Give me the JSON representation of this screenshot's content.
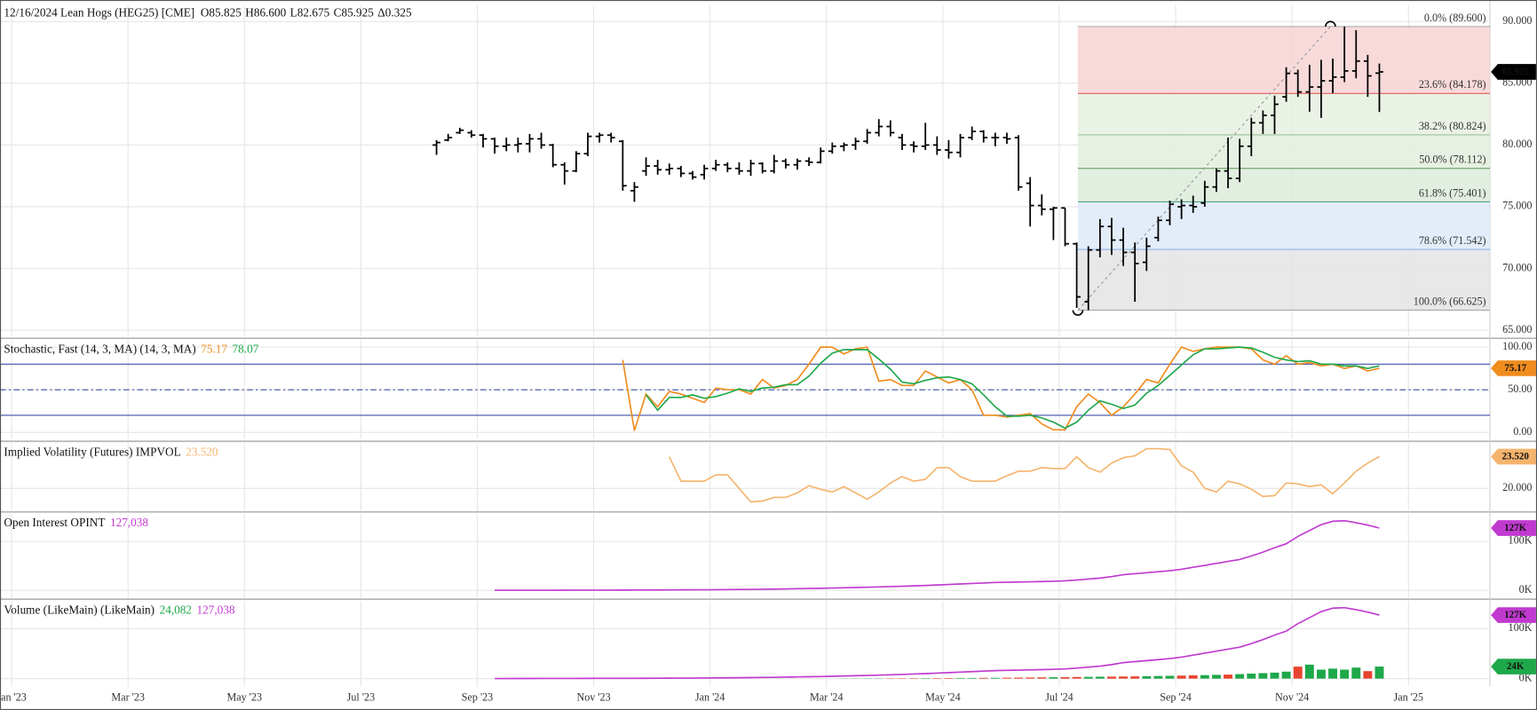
{
  "header": {
    "title": "12/16/2024 Lean Hogs (HEG25) [CME]",
    "quote": [
      "O85.825",
      "H86.600",
      "L82.675",
      "C85.925",
      "Δ0.325"
    ]
  },
  "chart_data": [
    {
      "type": "ohlc",
      "color": "#000000",
      "grid": true,
      "last_label": "85.925",
      "x": [
        7.3,
        7.5,
        7.7,
        7.9,
        8.1,
        8.3,
        8.5,
        8.7,
        8.9,
        9.1,
        9.3,
        9.5,
        9.7,
        9.9,
        10.1,
        10.3,
        10.5,
        10.7,
        10.9,
        11.1,
        11.3,
        11.5,
        11.7,
        11.9,
        12.1,
        12.3,
        12.5,
        12.7,
        12.9,
        13.1,
        13.3,
        13.5,
        13.7,
        13.9,
        14.1,
        14.3,
        14.5,
        14.7,
        14.9,
        15.1,
        15.3,
        15.5,
        15.7,
        15.9,
        16.1,
        16.3,
        16.5,
        16.7,
        16.9,
        17.1,
        17.3,
        17.5,
        17.7,
        17.9,
        18.1,
        18.3,
        18.5,
        18.7,
        18.9,
        19.1,
        19.3,
        19.5,
        19.7,
        19.9,
        20.1,
        20.3,
        20.5,
        20.7,
        20.9,
        21.1,
        21.3,
        21.5,
        21.7,
        21.9,
        22.1,
        22.3,
        22.5,
        22.7,
        22.9,
        23.1,
        23.3,
        23.5
      ],
      "open": [
        80.0,
        80.4,
        81.0,
        81.0,
        80.8,
        80.5,
        79.9,
        80.0,
        80.1,
        80.5,
        80.0,
        78.4,
        77.9,
        79.3,
        80.7,
        80.8,
        80.3,
        76.3,
        77.9,
        78.3,
        78.0,
        78.1,
        77.7,
        77.6,
        78.1,
        78.4,
        78.1,
        77.9,
        78.5,
        77.9,
        78.7,
        78.4,
        78.7,
        78.6,
        79.5,
        79.9,
        80.0,
        80.3,
        81.0,
        81.5,
        80.6,
        80.0,
        79.9,
        80.0,
        79.6,
        79.4,
        80.6,
        81.1,
        80.6,
        80.6,
        80.6,
        76.9,
        75.1,
        74.8,
        74.9,
        72.0,
        67.3,
        71.5,
        73.4,
        72.3,
        71.3,
        70.5,
        72.5,
        73.9,
        75.0,
        75.1,
        75.3,
        76.6,
        77.9,
        77.3,
        79.9,
        81.8,
        82.4,
        83.9,
        85.8,
        84.3,
        84.7,
        85.2,
        85.5,
        86.0,
        86.8,
        85.825
      ],
      "high": [
        80.4,
        80.9,
        81.4,
        81.2,
        80.9,
        80.6,
        80.6,
        80.6,
        80.9,
        81.0,
        80.1,
        78.6,
        79.5,
        81.0,
        81.0,
        81.0,
        80.4,
        77.0,
        79.0,
        78.8,
        78.5,
        78.3,
        77.9,
        78.4,
        78.8,
        78.6,
        78.6,
        78.8,
        78.6,
        79.2,
        78.9,
        78.9,
        79.0,
        79.8,
        80.2,
        80.2,
        80.6,
        81.3,
        82.1,
        82.0,
        80.9,
        80.3,
        81.8,
        80.7,
        80.4,
        80.9,
        81.5,
        81.2,
        81.0,
        81.0,
        80.8,
        77.4,
        76.0,
        75.0,
        74.9,
        72.1,
        71.8,
        74.0,
        74.1,
        73.3,
        72.1,
        72.5,
        74.2,
        75.5,
        75.6,
        75.9,
        77.1,
        78.1,
        80.6,
        80.5,
        82.2,
        82.8,
        84.0,
        86.3,
        86.1,
        86.5,
        86.9,
        87.0,
        89.6,
        89.3,
        87.3,
        86.6
      ],
      "low": [
        79.2,
        80.3,
        80.9,
        80.6,
        79.8,
        79.3,
        79.5,
        79.4,
        79.4,
        79.7,
        78.2,
        76.8,
        77.8,
        79.1,
        80.2,
        80.2,
        76.3,
        75.4,
        77.5,
        77.6,
        77.6,
        77.4,
        77.2,
        77.2,
        77.9,
        77.8,
        77.6,
        77.5,
        77.7,
        77.7,
        78.1,
        78.0,
        78.3,
        78.5,
        79.3,
        79.5,
        79.6,
        80.1,
        80.7,
        80.7,
        79.6,
        79.4,
        79.6,
        79.2,
        78.9,
        79.0,
        80.4,
        80.2,
        79.9,
        80.1,
        76.3,
        73.4,
        74.3,
        72.3,
        71.8,
        66.8,
        66.625,
        70.9,
        71.1,
        70.2,
        67.3,
        69.8,
        72.2,
        73.5,
        74.0,
        74.5,
        75.0,
        76.2,
        76.5,
        77.0,
        79.1,
        80.9,
        80.9,
        83.5,
        83.9,
        82.7,
        82.2,
        84.2,
        85.1,
        85.4,
        83.9,
        82.675
      ],
      "close": [
        80.2,
        80.6,
        81.2,
        80.8,
        80.5,
        79.9,
        80.0,
        80.1,
        80.5,
        80.0,
        78.4,
        77.9,
        79.3,
        80.7,
        80.8,
        80.6,
        76.7,
        76.6,
        78.3,
        78.0,
        78.1,
        77.7,
        77.4,
        78.1,
        78.4,
        78.1,
        77.9,
        78.5,
        77.9,
        78.7,
        78.4,
        78.7,
        78.6,
        79.5,
        79.9,
        80.0,
        80.3,
        81.0,
        81.5,
        81.0,
        80.0,
        79.9,
        80.0,
        79.6,
        79.4,
        80.6,
        81.1,
        80.6,
        80.6,
        80.5,
        76.6,
        75.1,
        74.8,
        74.9,
        72.0,
        67.7,
        71.5,
        73.4,
        72.3,
        71.3,
        70.4,
        71.8,
        73.9,
        75.2,
        75.1,
        75.0,
        76.6,
        77.9,
        77.3,
        79.9,
        81.8,
        82.4,
        83.3,
        85.8,
        84.3,
        84.7,
        85.2,
        85.5,
        86.0,
        86.8,
        85.6,
        85.925
      ],
      "ylim": [
        64.5,
        91.35
      ],
      "yticks": [
        {
          "value": 65,
          "label": "65.000"
        },
        {
          "value": 70,
          "label": "70.000"
        },
        {
          "value": 75,
          "label": "75.000"
        },
        {
          "value": 80,
          "label": "80.000"
        },
        {
          "value": 85,
          "label": "85.000"
        },
        {
          "value": 90,
          "label": "90.000"
        }
      ],
      "fibonacci": {
        "anchor_x": [
          18.32,
          22.66
        ],
        "levels": [
          {
            "label": "0.0% (89.600)",
            "value": 89.6,
            "color": "#a8a8a8",
            "fill": "#f7d4d4"
          },
          {
            "label": "23.6% (84.178)",
            "value": 84.178,
            "color": "#e06060",
            "fill": "#e6f0e2"
          },
          {
            "label": "38.2% (80.824)",
            "value": 80.824,
            "color": "#9cc49c",
            "fill": "#e2eede"
          },
          {
            "label": "50.0% (78.112)",
            "value": 78.112,
            "color": "#6aa06a",
            "fill": "#dcebdb"
          },
          {
            "label": "61.8% (75.401)",
            "value": 75.401,
            "color": "#3a9a78",
            "fill": "#deeaf8"
          },
          {
            "label": "78.6% (71.542)",
            "value": 71.542,
            "color": "#8db8ec",
            "fill": "#e4e4e4"
          },
          {
            "label": "100.0% (66.625)",
            "value": 66.625,
            "color": "#a8a8a8"
          }
        ]
      }
    },
    {
      "type": "line",
      "title": "Stochastic, Fast (14, 3, MA)  (14, 3, MA)",
      "series": [
        {
          "color": "#f08c1e",
          "value_label": "75.17",
          "values": [
            null,
            null,
            null,
            null,
            null,
            null,
            null,
            null,
            null,
            null,
            null,
            null,
            null,
            null,
            null,
            null,
            85,
            2,
            45,
            30,
            48,
            45,
            40,
            35,
            52,
            50,
            50,
            45,
            62,
            52,
            55,
            62,
            80,
            100,
            100,
            92,
            98,
            100,
            60,
            62,
            55,
            55,
            72,
            65,
            58,
            62,
            50,
            20,
            20,
            18,
            20,
            22,
            10,
            3,
            3,
            30,
            45,
            35,
            20,
            30,
            45,
            62,
            58,
            80,
            100,
            95,
            98,
            100,
            100,
            100,
            98,
            85,
            80,
            90,
            80,
            82,
            78,
            80,
            75,
            78,
            72,
            75.17
          ]
        },
        {
          "color": "#1ea84a",
          "value_label": "78.07",
          "values": [
            null,
            null,
            null,
            null,
            null,
            null,
            null,
            null,
            null,
            null,
            null,
            null,
            null,
            null,
            null,
            null,
            null,
            null,
            44,
            26,
            41,
            41,
            44,
            40,
            42,
            46,
            51,
            48,
            52,
            53,
            56,
            56,
            66,
            81,
            93,
            97,
            97,
            97,
            86,
            74,
            59,
            57,
            61,
            64,
            65,
            62,
            57,
            44,
            30,
            19,
            19,
            20,
            17,
            12,
            5,
            12,
            26,
            37,
            33,
            28,
            32,
            46,
            55,
            67,
            79,
            91,
            98,
            98,
            99,
            100,
            99,
            94,
            88,
            85,
            83,
            84,
            80,
            80,
            78,
            78,
            75,
            78.07
          ]
        }
      ],
      "ylim": [
        -7,
        108
      ],
      "yticks": [
        {
          "value": 0,
          "label": "0.00"
        },
        {
          "value": 50,
          "label": "50.00"
        },
        {
          "value": 100,
          "label": "100.00"
        }
      ],
      "levels": [
        {
          "value": 80,
          "dash": "none"
        },
        {
          "value": 50,
          "dash": "6,3,2,3"
        },
        {
          "value": 20,
          "dash": "none"
        }
      ],
      "level_color": "#3d4fa8"
    },
    {
      "type": "line",
      "title": "Implied Volatility (Futures)  IMPVOL",
      "series": [
        {
          "color": "#f5b46e",
          "value_label": "23.520",
          "values": [
            null,
            null,
            null,
            null,
            null,
            null,
            null,
            null,
            null,
            null,
            null,
            null,
            null,
            null,
            null,
            null,
            null,
            null,
            null,
            null,
            23.5,
            20.8,
            20.8,
            20.8,
            21.5,
            21.5,
            20.0,
            18.5,
            18.6,
            19.0,
            19.0,
            19.5,
            20.3,
            19.9,
            19.6,
            20.2,
            19.5,
            18.8,
            19.6,
            20.6,
            21.3,
            20.8,
            21.0,
            22.3,
            22.3,
            21.3,
            20.8,
            20.8,
            20.8,
            21.4,
            21.9,
            21.9,
            22.3,
            22.2,
            22.2,
            23.5,
            22.3,
            21.8,
            22.8,
            23.4,
            23.6,
            24.4,
            24.4,
            24.3,
            22.5,
            21.8,
            20.0,
            19.6,
            20.8,
            20.5,
            19.9,
            19.1,
            19.2,
            20.6,
            20.5,
            20.2,
            20.4,
            19.4,
            20.6,
            21.9,
            22.8,
            23.52
          ]
        }
      ],
      "ylim": [
        17.5,
        25
      ],
      "yticks": [
        {
          "value": 20,
          "label": "20.000"
        }
      ]
    },
    {
      "type": "line",
      "title": "Open Interest  OPINT",
      "series": [
        {
          "color": "#c03ad0",
          "value_label": "127,038",
          "tag_label": "127K",
          "values": [
            null,
            null,
            null,
            null,
            null,
            200,
            220,
            250,
            280,
            300,
            330,
            360,
            400,
            450,
            500,
            550,
            600,
            650,
            700,
            800,
            900,
            1000,
            1100,
            1200,
            1400,
            1600,
            1800,
            2000,
            2300,
            2600,
            3000,
            3400,
            3800,
            4200,
            4700,
            5200,
            5800,
            6400,
            7000,
            7700,
            8400,
            9200,
            10000,
            11000,
            12000,
            13000,
            14000,
            15000,
            16000,
            16500,
            17000,
            17500,
            18000,
            18500,
            19500,
            21000,
            23000,
            25000,
            28000,
            32000,
            34000,
            36000,
            38000,
            40000,
            43000,
            47000,
            51000,
            55000,
            59000,
            63000,
            70000,
            78000,
            87000,
            95000,
            110000,
            122000,
            134000,
            141000,
            142000,
            138000,
            133000,
            127038
          ]
        }
      ],
      "ylim": [
        -16000,
        156000
      ],
      "yticks": [
        {
          "value": 0,
          "label": "0K"
        },
        {
          "value": 100000,
          "label": "100K"
        }
      ]
    },
    {
      "type": "bar",
      "title": "Volume (LikeMain)  (LikeMain)",
      "value_label": "24,082",
      "tag_label": "24K",
      "up_color": "#1ea84a",
      "down_color": "#e8432e",
      "values": [
        null,
        null,
        null,
        null,
        null,
        null,
        null,
        null,
        null,
        null,
        null,
        null,
        null,
        null,
        null,
        null,
        null,
        null,
        null,
        null,
        null,
        null,
        null,
        null,
        null,
        null,
        null,
        null,
        null,
        null,
        null,
        null,
        null,
        null,
        null,
        300,
        350,
        400,
        500,
        600,
        700,
        800,
        900,
        1000,
        1100,
        1200,
        1300,
        1500,
        1600,
        1800,
        2000,
        2200,
        2500,
        2800,
        3000,
        3300,
        3500,
        3800,
        4000,
        4300,
        4500,
        4800,
        5200,
        5600,
        6000,
        6500,
        7000,
        7500,
        8000,
        9000,
        10000,
        11000,
        12000,
        14000,
        24000,
        28000,
        18000,
        20000,
        18000,
        22000,
        15000,
        24082
      ],
      "ylim": [
        -15700,
        155000
      ],
      "yticks": [
        {
          "value": 0,
          "label": "0K"
        },
        {
          "value": 100000,
          "label": "100K"
        }
      ],
      "xlim": [
        -0.2,
        25.4
      ],
      "xticks": [
        {
          "value": 0,
          "label": "Jan '23"
        },
        {
          "value": 2,
          "label": "Mar '23"
        },
        {
          "value": 4,
          "label": "May '23"
        },
        {
          "value": 6,
          "label": "Jul '23"
        },
        {
          "value": 8,
          "label": "Sep '23"
        },
        {
          "value": 10,
          "label": "Nov '23"
        },
        {
          "value": 12,
          "label": "Jan '24"
        },
        {
          "value": 14,
          "label": "Mar '24"
        },
        {
          "value": 16,
          "label": "May '24"
        },
        {
          "value": 18,
          "label": "Jul '24"
        },
        {
          "value": 20,
          "label": "Sep '24"
        },
        {
          "value": 22,
          "label": "Nov '24"
        },
        {
          "value": 24,
          "label": "Jan '25"
        }
      ]
    }
  ]
}
